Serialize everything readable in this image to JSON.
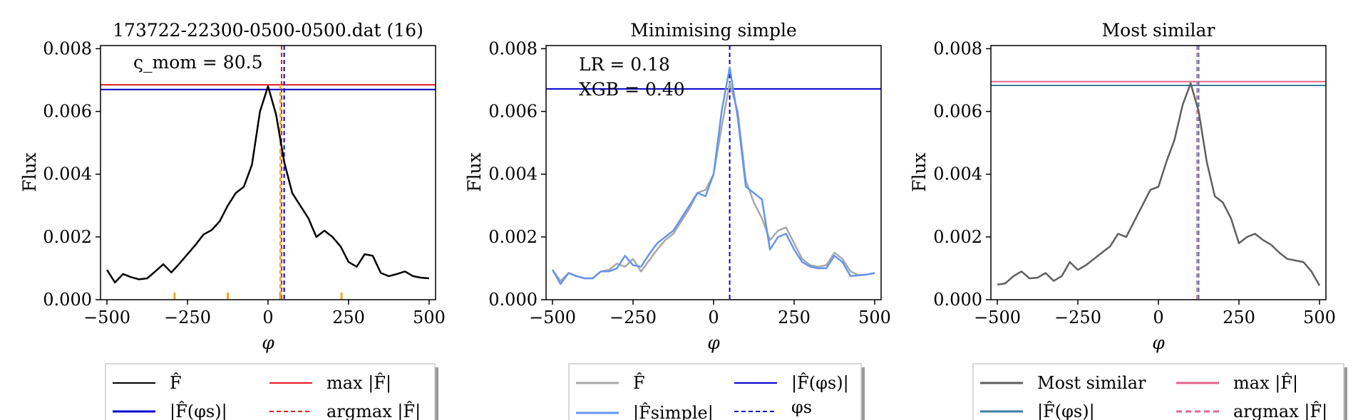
{
  "chart_data": [
    {
      "type": "line",
      "title": "173722-22300-0500-0500.dat (16)",
      "xlabel": "φ",
      "ylabel": "Flux",
      "xlim": [
        -520,
        520
      ],
      "ylim": [
        0,
        0.0081
      ],
      "xticks": [
        -500,
        -250,
        0,
        250,
        500
      ],
      "xtick_labels": [
        "−500",
        "−250",
        "0",
        "250",
        "500"
      ],
      "yticks": [
        0,
        0.002,
        0.004,
        0.006,
        0.008
      ],
      "ytick_labels": [
        "0.000",
        "0.002",
        "0.004",
        "0.006",
        "0.008"
      ],
      "annotation": "ς_mom = 80.5",
      "hlines": [
        {
          "y": 0.00685,
          "color": "#e41a1c",
          "style": "solid"
        },
        {
          "y": 0.0067,
          "color": "#0000cd",
          "style": "solid"
        }
      ],
      "vlines": [
        {
          "x": 42,
          "color": "#e41a1c",
          "style": "dashed"
        },
        {
          "x": 50,
          "color": "#0000cd",
          "style": "dashed"
        },
        {
          "x": 38,
          "color": "#f5a623",
          "style": "dashed",
          "ymax": 0.00685
        }
      ],
      "rug": {
        "x": [
          -290,
          -125,
          38,
          228
        ],
        "color": "#f5a623"
      },
      "series": [
        {
          "color": "#000000",
          "x": [
            -500,
            -475,
            -450,
            -425,
            -400,
            -375,
            -350,
            -325,
            -300,
            -275,
            -250,
            -225,
            -200,
            -175,
            -150,
            -125,
            -100,
            -75,
            -50,
            -25,
            0,
            25,
            50,
            75,
            100,
            125,
            150,
            175,
            200,
            225,
            250,
            275,
            300,
            325,
            350,
            375,
            400,
            425,
            450,
            475,
            500
          ],
          "y": [
            0.00095,
            0.00055,
            0.00082,
            0.00072,
            0.00065,
            0.00068,
            0.0009,
            0.00113,
            0.00087,
            0.00115,
            0.00145,
            0.00175,
            0.00208,
            0.00222,
            0.0025,
            0.003,
            0.0034,
            0.0036,
            0.0043,
            0.006,
            0.0068,
            0.0059,
            0.0044,
            0.0034,
            0.003,
            0.0026,
            0.002,
            0.0022,
            0.002,
            0.0017,
            0.0012,
            0.00105,
            0.00145,
            0.0014,
            0.00085,
            0.00075,
            0.00082,
            0.0009,
            0.00075,
            0.0007,
            0.00068
          ]
        }
      ],
      "legend": {
        "placement": "below",
        "entries": [
          {
            "label": "F̂",
            "color": "#000000",
            "style": "solid"
          },
          {
            "label": "max |F̂|",
            "color": "#e41a1c",
            "style": "solid"
          },
          {
            "label": "|F̂(φs)|",
            "color": "#0000cd",
            "style": "solid"
          },
          {
            "label": "argmax |F̂|",
            "color": "#e41a1c",
            "style": "dashed"
          }
        ]
      }
    },
    {
      "type": "line",
      "title": "Minimising simple",
      "xlabel": "φ",
      "ylabel": "Flux",
      "xlim": [
        -520,
        520
      ],
      "ylim": [
        0,
        0.0081
      ],
      "xticks": [
        -500,
        -250,
        0,
        250,
        500
      ],
      "xtick_labels": [
        "−500",
        "−250",
        "0",
        "250",
        "500"
      ],
      "yticks": [
        0,
        0.002,
        0.004,
        0.006,
        0.008
      ],
      "ytick_labels": [
        "0.000",
        "0.002",
        "0.004",
        "0.006",
        "0.008"
      ],
      "annotations": [
        "LR = 0.18",
        "XGB = 0.40"
      ],
      "hlines": [
        {
          "y": 0.00672,
          "color": "#0000cd",
          "style": "solid"
        }
      ],
      "vlines": [
        {
          "x": 50,
          "color": "#0000cd",
          "style": "dashed"
        }
      ],
      "series": [
        {
          "color": "#a8a8a8",
          "x": [
            -500,
            -475,
            -450,
            -425,
            -400,
            -375,
            -350,
            -325,
            -300,
            -275,
            -250,
            -225,
            -200,
            -175,
            -150,
            -125,
            -100,
            -75,
            -50,
            -25,
            0,
            25,
            50,
            75,
            100,
            125,
            150,
            175,
            200,
            225,
            250,
            275,
            300,
            325,
            350,
            375,
            400,
            425,
            450,
            475,
            500
          ],
          "y": [
            0.00095,
            0.0006,
            0.00085,
            0.00075,
            0.00068,
            0.00068,
            0.0009,
            0.00095,
            0.00115,
            0.00105,
            0.0013,
            0.0009,
            0.00125,
            0.0016,
            0.0019,
            0.0021,
            0.0025,
            0.0029,
            0.0034,
            0.0035,
            0.004,
            0.0055,
            0.0069,
            0.006,
            0.0038,
            0.0031,
            0.0026,
            0.0019,
            0.0022,
            0.0023,
            0.0018,
            0.0013,
            0.0011,
            0.00105,
            0.0011,
            0.0015,
            0.0013,
            0.0009,
            0.00078,
            0.0008,
            0.00085
          ]
        },
        {
          "color": "#6495ed",
          "x": [
            -500,
            -475,
            -450,
            -425,
            -400,
            -375,
            -350,
            -325,
            -300,
            -275,
            -250,
            -225,
            -200,
            -175,
            -150,
            -125,
            -100,
            -75,
            -50,
            -25,
            0,
            25,
            50,
            75,
            100,
            125,
            150,
            175,
            200,
            225,
            250,
            275,
            300,
            325,
            350,
            375,
            400,
            425,
            450,
            475,
            500
          ],
          "y": [
            0.00095,
            0.0005,
            0.00085,
            0.00075,
            0.00068,
            0.00068,
            0.0009,
            0.0009,
            0.001,
            0.0014,
            0.0011,
            0.00105,
            0.00145,
            0.0018,
            0.002,
            0.0022,
            0.0026,
            0.003,
            0.0034,
            0.0033,
            0.004,
            0.006,
            0.0074,
            0.0058,
            0.0036,
            0.0034,
            0.0032,
            0.0016,
            0.002,
            0.0021,
            0.0016,
            0.0012,
            0.00105,
            0.001,
            0.001,
            0.0014,
            0.0012,
            0.00075,
            0.00078,
            0.0008,
            0.00085
          ]
        }
      ],
      "legend": {
        "placement": "below",
        "entries": [
          {
            "label": "F̂",
            "color": "#a8a8a8",
            "style": "solid"
          },
          {
            "label": "|F̂(φs)|",
            "color": "#0000cd",
            "style": "solid"
          },
          {
            "label": "|F̂simple|",
            "color": "#6495ed",
            "style": "solid"
          },
          {
            "label": "φs",
            "color": "#0000cd",
            "style": "dashed"
          }
        ]
      }
    },
    {
      "type": "line",
      "title": "Most similar",
      "xlabel": "φ",
      "ylabel": "Flux",
      "xlim": [
        -520,
        520
      ],
      "ylim": [
        0,
        0.0081
      ],
      "xticks": [
        -500,
        -250,
        0,
        250,
        500
      ],
      "xtick_labels": [
        "−500",
        "−250",
        "0",
        "250",
        "500"
      ],
      "yticks": [
        0,
        0.002,
        0.004,
        0.006,
        0.008
      ],
      "ytick_labels": [
        "0.000",
        "0.002",
        "0.004",
        "0.006",
        "0.008"
      ],
      "hlines": [
        {
          "y": 0.00695,
          "color": "#e0668a",
          "style": "solid"
        },
        {
          "y": 0.00683,
          "color": "#3b7ea1",
          "style": "solid"
        }
      ],
      "vlines": [
        {
          "x": 120,
          "color": "#e0668a",
          "style": "dashed"
        },
        {
          "x": 125,
          "color": "#3b7ea1",
          "style": "dashed"
        }
      ],
      "series": [
        {
          "color": "#5f5f5f",
          "x": [
            -500,
            -475,
            -450,
            -425,
            -400,
            -375,
            -350,
            -325,
            -300,
            -275,
            -250,
            -225,
            -200,
            -175,
            -150,
            -125,
            -100,
            -75,
            -50,
            -25,
            0,
            25,
            50,
            75,
            100,
            125,
            150,
            175,
            200,
            225,
            250,
            275,
            300,
            325,
            350,
            375,
            400,
            425,
            450,
            475,
            500
          ],
          "y": [
            0.00048,
            0.00052,
            0.00075,
            0.0009,
            0.00068,
            0.0007,
            0.00085,
            0.0006,
            0.00075,
            0.0012,
            0.00095,
            0.0011,
            0.0013,
            0.0015,
            0.0017,
            0.0021,
            0.002,
            0.0025,
            0.003,
            0.0035,
            0.0036,
            0.0044,
            0.0051,
            0.0062,
            0.0069,
            0.006,
            0.0044,
            0.0033,
            0.0031,
            0.0026,
            0.0018,
            0.002,
            0.0021,
            0.0019,
            0.00175,
            0.0015,
            0.0013,
            0.00125,
            0.0012,
            0.0009,
            0.00045
          ]
        }
      ],
      "legend": {
        "placement": "below",
        "entries": [
          {
            "label": "Most similar",
            "color": "#5f5f5f",
            "style": "solid"
          },
          {
            "label": "max |F̂|",
            "color": "#e0668a",
            "style": "solid"
          },
          {
            "label": "|F̂(φs)|",
            "color": "#3b7ea1",
            "style": "solid"
          },
          {
            "label": "argmax |F̂|",
            "color": "#e0668a",
            "style": "dashed"
          }
        ]
      }
    }
  ]
}
